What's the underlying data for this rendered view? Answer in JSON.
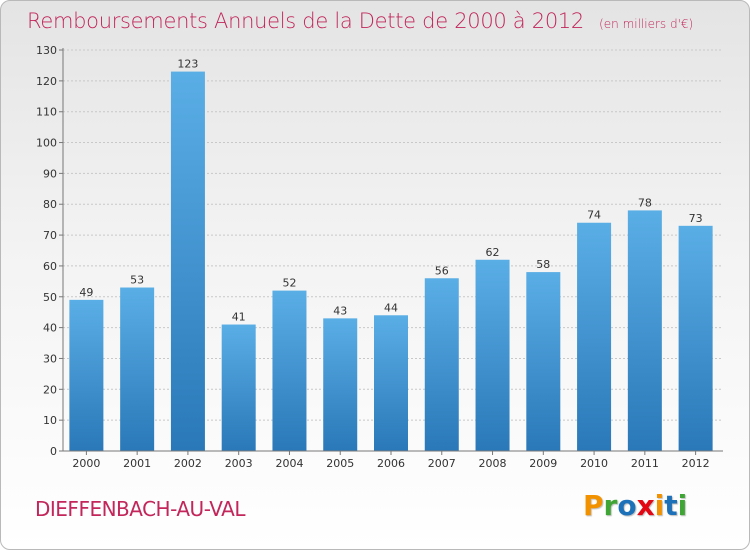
{
  "header": {
    "title": "Remboursements Annuels de la Dette de 2000 à 2012",
    "unit": "(en milliers d'€)"
  },
  "footer": {
    "commune": "DIEFFENBACH-AU-VAL",
    "logo_text": "Proxiti",
    "logo_colors": [
      "#f39200",
      "#3fa535",
      "#1d71b8",
      "#e30613",
      "#f39200",
      "#1d71b8",
      "#3fa535"
    ]
  },
  "colors": {
    "title": "#c2265b",
    "bar_top": "#5aaee6",
    "bar_bottom": "#2a78b8"
  },
  "chart_data": {
    "type": "bar",
    "categories": [
      "2000",
      "2001",
      "2002",
      "2003",
      "2004",
      "2005",
      "2006",
      "2007",
      "2008",
      "2009",
      "2010",
      "2011",
      "2012"
    ],
    "values": [
      49,
      53,
      123,
      41,
      52,
      43,
      44,
      56,
      62,
      58,
      74,
      78,
      73
    ],
    "ylim": [
      0,
      130
    ],
    "yticks": [
      0,
      10,
      20,
      30,
      40,
      50,
      60,
      70,
      80,
      90,
      100,
      110,
      120,
      130
    ],
    "grid": true,
    "legend": "none"
  }
}
